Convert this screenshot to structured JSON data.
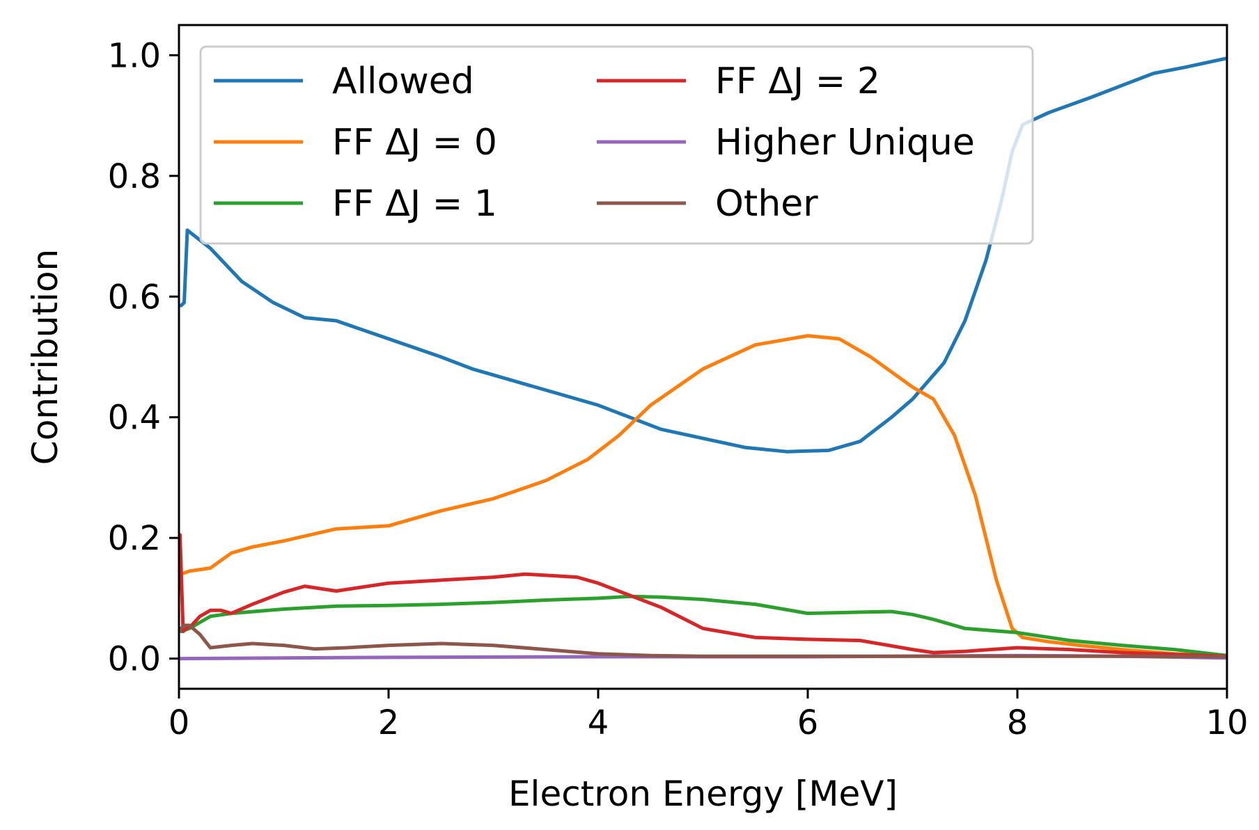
{
  "chart_data": {
    "type": "line",
    "xlabel": "Electron Energy [MeV]",
    "ylabel": "Contribution",
    "xlim": [
      0,
      10
    ],
    "ylim": [
      -0.05,
      1.05
    ],
    "xticks": [
      0,
      2,
      4,
      6,
      8,
      10
    ],
    "xtick_labels": [
      "0",
      "2",
      "4",
      "6",
      "8",
      "10"
    ],
    "yticks": [
      0.0,
      0.2,
      0.4,
      0.6,
      0.8,
      1.0
    ],
    "ytick_labels": [
      "0.0",
      "0.2",
      "0.4",
      "0.6",
      "0.8",
      "1.0"
    ],
    "grid": false,
    "legend": {
      "placement": "top-left",
      "columns": 2
    },
    "series": [
      {
        "name": "Allowed",
        "color": "#1f77b4",
        "x": [
          0.02,
          0.05,
          0.08,
          0.3,
          0.6,
          0.9,
          1.2,
          1.5,
          2.0,
          2.5,
          2.8,
          3.2,
          3.6,
          4.0,
          4.3,
          4.6,
          5.0,
          5.4,
          5.8,
          6.2,
          6.5,
          6.8,
          7.0,
          7.3,
          7.5,
          7.7,
          7.85,
          7.95,
          8.05,
          8.3,
          8.7,
          9.0,
          9.3,
          9.6,
          10.0
        ],
        "y": [
          0.585,
          0.59,
          0.71,
          0.68,
          0.625,
          0.59,
          0.565,
          0.56,
          0.53,
          0.5,
          0.48,
          0.46,
          0.44,
          0.42,
          0.4,
          0.38,
          0.365,
          0.35,
          0.343,
          0.345,
          0.36,
          0.4,
          0.43,
          0.49,
          0.56,
          0.66,
          0.76,
          0.84,
          0.885,
          0.905,
          0.93,
          0.95,
          0.97,
          0.98,
          0.995
        ]
      },
      {
        "name": "FF ΔJ = 0",
        "color": "#ff7f0e",
        "x": [
          0.02,
          0.1,
          0.3,
          0.5,
          0.7,
          1.0,
          1.5,
          2.0,
          2.5,
          3.0,
          3.5,
          3.9,
          4.2,
          4.5,
          5.0,
          5.5,
          6.0,
          6.3,
          6.6,
          7.0,
          7.2,
          7.4,
          7.6,
          7.8,
          7.95,
          8.05,
          8.3,
          8.6,
          9.0,
          9.5,
          10.0
        ],
        "y": [
          0.14,
          0.145,
          0.15,
          0.175,
          0.185,
          0.195,
          0.215,
          0.22,
          0.245,
          0.265,
          0.295,
          0.33,
          0.37,
          0.42,
          0.48,
          0.52,
          0.535,
          0.53,
          0.5,
          0.45,
          0.43,
          0.37,
          0.27,
          0.13,
          0.05,
          0.035,
          0.028,
          0.022,
          0.015,
          0.008,
          0.004
        ]
      },
      {
        "name": "FF ΔJ = 1",
        "color": "#2ca02c",
        "x": [
          0.02,
          0.1,
          0.3,
          0.5,
          1.0,
          1.5,
          2.0,
          2.5,
          3.0,
          3.5,
          4.0,
          4.3,
          4.6,
          5.0,
          5.5,
          6.0,
          6.5,
          6.8,
          7.0,
          7.2,
          7.5,
          8.0,
          8.5,
          9.0,
          9.5,
          10.0
        ],
        "y": [
          0.045,
          0.05,
          0.07,
          0.075,
          0.082,
          0.087,
          0.088,
          0.09,
          0.093,
          0.097,
          0.1,
          0.103,
          0.102,
          0.098,
          0.09,
          0.075,
          0.077,
          0.078,
          0.073,
          0.065,
          0.05,
          0.043,
          0.03,
          0.022,
          0.015,
          0.005
        ]
      },
      {
        "name": "FF ΔJ = 2",
        "color": "#d62728",
        "x": [
          0.01,
          0.04,
          0.07,
          0.12,
          0.2,
          0.3,
          0.4,
          0.5,
          0.7,
          1.0,
          1.2,
          1.5,
          2.0,
          2.5,
          3.0,
          3.3,
          3.6,
          3.8,
          4.0,
          4.3,
          4.6,
          5.0,
          5.5,
          6.0,
          6.5,
          7.0,
          7.2,
          7.5,
          8.0,
          8.5,
          9.0,
          9.5,
          10.0
        ],
        "y": [
          0.205,
          0.045,
          0.05,
          0.055,
          0.07,
          0.08,
          0.08,
          0.075,
          0.09,
          0.11,
          0.12,
          0.112,
          0.125,
          0.13,
          0.135,
          0.14,
          0.137,
          0.135,
          0.125,
          0.105,
          0.085,
          0.05,
          0.035,
          0.032,
          0.03,
          0.015,
          0.01,
          0.012,
          0.018,
          0.015,
          0.01,
          0.007,
          0.004
        ]
      },
      {
        "name": "Higher Unique",
        "color": "#9467bd",
        "x": [
          0.0,
          2.0,
          4.0,
          6.0,
          8.0,
          9.0,
          10.0
        ],
        "y": [
          0.0,
          0.002,
          0.003,
          0.003,
          0.005,
          0.004,
          0.001
        ]
      },
      {
        "name": "Other",
        "color": "#8c564b",
        "x": [
          0.02,
          0.05,
          0.1,
          0.2,
          0.3,
          0.5,
          0.7,
          1.0,
          1.3,
          1.6,
          2.0,
          2.5,
          3.0,
          3.5,
          4.0,
          4.5,
          5.0,
          6.0,
          7.0,
          8.0,
          9.0,
          10.0
        ],
        "y": [
          0.05,
          0.055,
          0.055,
          0.04,
          0.018,
          0.022,
          0.025,
          0.022,
          0.016,
          0.018,
          0.022,
          0.025,
          0.022,
          0.015,
          0.008,
          0.005,
          0.004,
          0.004,
          0.004,
          0.004,
          0.004,
          0.003
        ]
      }
    ]
  }
}
